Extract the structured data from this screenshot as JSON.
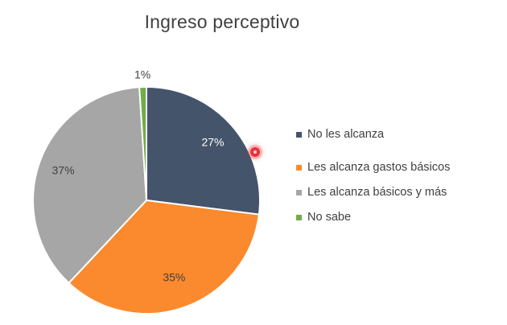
{
  "chart_data": {
    "type": "pie",
    "title": "Ingreso perceptivo",
    "categories": [
      "No les alcanza",
      "Les alcanza gastos básicos",
      "Les alcanza básicos y más",
      "No sabe"
    ],
    "values": [
      27,
      35,
      37,
      1
    ],
    "data_labels": [
      "27%",
      "35%",
      "37%",
      "1%"
    ],
    "colors": [
      "#44546a",
      "#fb8a2e",
      "#a6a6a6",
      "#70ad47"
    ],
    "legend_position": "right"
  },
  "legend": {
    "items": [
      {
        "label": "No les alcanza",
        "color": "#44546a"
      },
      {
        "label": "Les alcanza gastos básicos",
        "color": "#fb8a2e"
      },
      {
        "label": "Les alcanza básicos y más",
        "color": "#a6a6a6"
      },
      {
        "label": "No sabe",
        "color": "#70ad47"
      }
    ]
  }
}
